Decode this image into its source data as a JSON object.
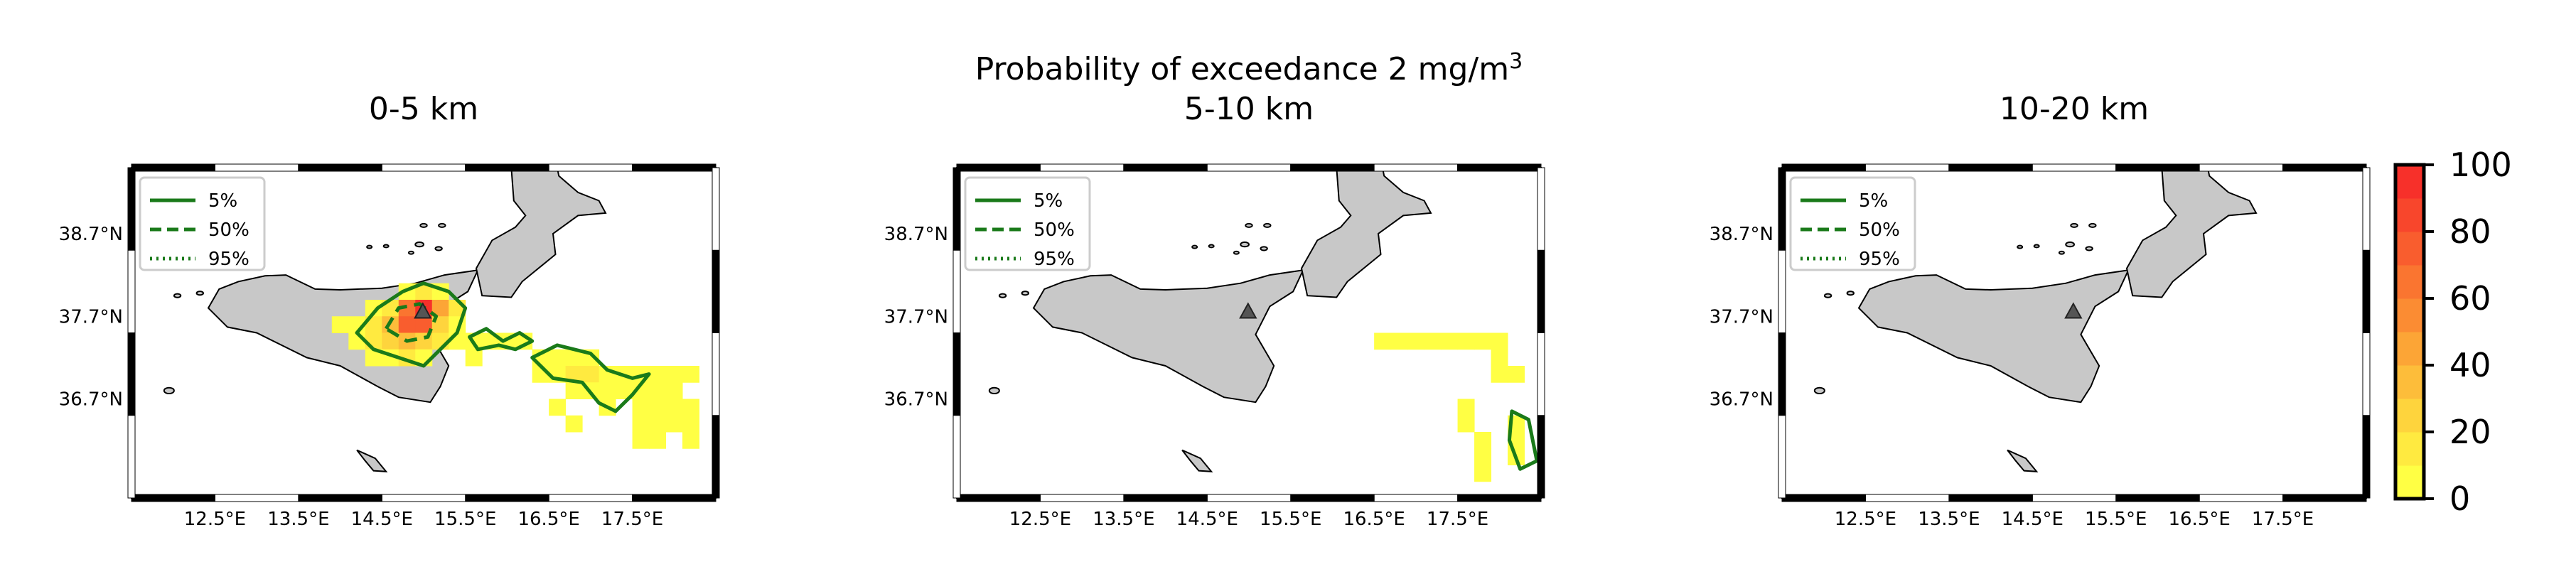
{
  "figure": {
    "suptitle_main": "Probability of exceedance 2 mg/m",
    "suptitle_sup": "3"
  },
  "legend": {
    "items": [
      {
        "label": "5%",
        "dash": "solid"
      },
      {
        "label": "50%",
        "dash": "dashed"
      },
      {
        "label": "95%",
        "dash": "dotted"
      }
    ]
  },
  "axes": {
    "lon_ticks": [
      "12.5°E",
      "13.5°E",
      "14.5°E",
      "15.5°E",
      "16.5°E",
      "17.5°E"
    ],
    "lon_values": [
      12.5,
      13.5,
      14.5,
      15.5,
      16.5,
      17.5
    ],
    "lat_ticks": [
      "38.7°N",
      "37.7°N",
      "36.7°N"
    ],
    "lat_values": [
      38.7,
      37.7,
      36.7
    ],
    "extent": {
      "lon_min": 11.5,
      "lon_max": 18.5,
      "lat_min": 35.5,
      "lat_max": 39.5
    }
  },
  "colorbar": {
    "ticks": [
      "0",
      "20",
      "40",
      "60",
      "80",
      "100"
    ],
    "tick_values": [
      0,
      20,
      40,
      60,
      80,
      100
    ],
    "colors": [
      "#ffff44",
      "#ffea40",
      "#fed43d",
      "#fdbd3a",
      "#fca536",
      "#fb8c33",
      "#fa7530",
      "#f95d2e",
      "#f8462c",
      "#f7302a"
    ]
  },
  "colors": {
    "land": "#c8c8c8",
    "contour": "#1a7a1a",
    "volcano": "#555555"
  },
  "panels": [
    {
      "title": "0-5 km",
      "cells": [
        {
          "lon": 14.8,
          "lat": 38.0,
          "p": 8
        },
        {
          "lon": 15.0,
          "lat": 38.0,
          "p": 15
        },
        {
          "lon": 15.2,
          "lat": 38.0,
          "p": 8
        },
        {
          "lon": 14.4,
          "lat": 37.8,
          "p": 6
        },
        {
          "lon": 14.6,
          "lat": 37.8,
          "p": 12
        },
        {
          "lon": 14.8,
          "lat": 37.8,
          "p": 60
        },
        {
          "lon": 15.0,
          "lat": 37.8,
          "p": 95
        },
        {
          "lon": 15.2,
          "lat": 37.8,
          "p": 45
        },
        {
          "lon": 15.4,
          "lat": 37.8,
          "p": 10
        },
        {
          "lon": 14.0,
          "lat": 37.6,
          "p": 5
        },
        {
          "lon": 14.2,
          "lat": 37.6,
          "p": 6
        },
        {
          "lon": 14.4,
          "lat": 37.6,
          "p": 10
        },
        {
          "lon": 14.6,
          "lat": 37.6,
          "p": 30
        },
        {
          "lon": 14.8,
          "lat": 37.6,
          "p": 75
        },
        {
          "lon": 15.0,
          "lat": 37.6,
          "p": 70
        },
        {
          "lon": 15.2,
          "lat": 37.6,
          "p": 25
        },
        {
          "lon": 15.4,
          "lat": 37.6,
          "p": 8
        },
        {
          "lon": 14.2,
          "lat": 37.4,
          "p": 5
        },
        {
          "lon": 14.4,
          "lat": 37.4,
          "p": 10
        },
        {
          "lon": 14.6,
          "lat": 37.4,
          "p": 20
        },
        {
          "lon": 14.8,
          "lat": 37.4,
          "p": 30
        },
        {
          "lon": 15.0,
          "lat": 37.4,
          "p": 22
        },
        {
          "lon": 15.2,
          "lat": 37.4,
          "p": 10
        },
        {
          "lon": 15.4,
          "lat": 37.4,
          "p": 5
        },
        {
          "lon": 14.4,
          "lat": 37.2,
          "p": 6
        },
        {
          "lon": 14.6,
          "lat": 37.2,
          "p": 8
        },
        {
          "lon": 14.8,
          "lat": 37.2,
          "p": 10
        },
        {
          "lon": 15.0,
          "lat": 37.2,
          "p": 6
        },
        {
          "lon": 15.6,
          "lat": 37.4,
          "p": 5
        },
        {
          "lon": 15.8,
          "lat": 37.4,
          "p": 8
        },
        {
          "lon": 16.0,
          "lat": 37.4,
          "p": 8
        },
        {
          "lon": 16.2,
          "lat": 37.4,
          "p": 6
        },
        {
          "lon": 15.6,
          "lat": 37.2,
          "p": 5
        },
        {
          "lon": 16.4,
          "lat": 37.2,
          "p": 6
        },
        {
          "lon": 16.6,
          "lat": 37.2,
          "p": 8
        },
        {
          "lon": 16.8,
          "lat": 37.2,
          "p": 8
        },
        {
          "lon": 17.0,
          "lat": 37.2,
          "p": 6
        },
        {
          "lon": 16.4,
          "lat": 37.0,
          "p": 6
        },
        {
          "lon": 16.6,
          "lat": 37.0,
          "p": 8
        },
        {
          "lon": 16.8,
          "lat": 37.0,
          "p": 10
        },
        {
          "lon": 17.0,
          "lat": 37.0,
          "p": 10
        },
        {
          "lon": 17.2,
          "lat": 37.0,
          "p": 8
        },
        {
          "lon": 17.4,
          "lat": 37.0,
          "p": 6
        },
        {
          "lon": 17.6,
          "lat": 37.0,
          "p": 5
        },
        {
          "lon": 17.8,
          "lat": 37.0,
          "p": 5
        },
        {
          "lon": 18.0,
          "lat": 37.0,
          "p": 5
        },
        {
          "lon": 18.2,
          "lat": 37.0,
          "p": 5
        },
        {
          "lon": 16.8,
          "lat": 36.8,
          "p": 6
        },
        {
          "lon": 17.0,
          "lat": 36.8,
          "p": 8
        },
        {
          "lon": 17.2,
          "lat": 36.8,
          "p": 6
        },
        {
          "lon": 17.4,
          "lat": 36.8,
          "p": 5
        },
        {
          "lon": 17.6,
          "lat": 36.8,
          "p": 5
        },
        {
          "lon": 17.8,
          "lat": 36.8,
          "p": 5
        },
        {
          "lon": 18.0,
          "lat": 36.8,
          "p": 5
        },
        {
          "lon": 16.6,
          "lat": 36.6,
          "p": 5
        },
        {
          "lon": 17.2,
          "lat": 36.6,
          "p": 5
        },
        {
          "lon": 17.6,
          "lat": 36.6,
          "p": 5
        },
        {
          "lon": 17.8,
          "lat": 36.6,
          "p": 5
        },
        {
          "lon": 18.0,
          "lat": 36.6,
          "p": 5
        },
        {
          "lon": 18.2,
          "lat": 36.6,
          "p": 5
        },
        {
          "lon": 16.8,
          "lat": 36.4,
          "p": 5
        },
        {
          "lon": 17.6,
          "lat": 36.4,
          "p": 5
        },
        {
          "lon": 17.8,
          "lat": 36.4,
          "p": 5
        },
        {
          "lon": 18.0,
          "lat": 36.4,
          "p": 5
        },
        {
          "lon": 18.2,
          "lat": 36.4,
          "p": 5
        },
        {
          "lon": 17.6,
          "lat": 36.2,
          "p": 5
        },
        {
          "lon": 17.8,
          "lat": 36.2,
          "p": 5
        },
        {
          "lon": 18.2,
          "lat": 36.2,
          "p": 5
        }
      ],
      "contours": [
        {
          "level": "5%",
          "points": [
            [
              14.2,
              37.5
            ],
            [
              14.45,
              37.8
            ],
            [
              14.75,
              38.0
            ],
            [
              15.0,
              38.1
            ],
            [
              15.3,
              38.0
            ],
            [
              15.5,
              37.8
            ],
            [
              15.4,
              37.5
            ],
            [
              15.2,
              37.3
            ],
            [
              15.0,
              37.1
            ],
            [
              14.7,
              37.2
            ],
            [
              14.4,
              37.3
            ]
          ]
        },
        {
          "level": "5%",
          "points": [
            [
              15.55,
              37.45
            ],
            [
              15.75,
              37.55
            ],
            [
              15.95,
              37.4
            ],
            [
              16.15,
              37.5
            ],
            [
              16.3,
              37.4
            ],
            [
              16.1,
              37.3
            ],
            [
              15.9,
              37.35
            ],
            [
              15.65,
              37.3
            ]
          ]
        },
        {
          "level": "5%",
          "points": [
            [
              16.3,
              37.2
            ],
            [
              16.6,
              37.35
            ],
            [
              17.0,
              37.25
            ],
            [
              17.2,
              37.05
            ],
            [
              17.5,
              36.95
            ],
            [
              17.7,
              37.0
            ],
            [
              17.5,
              36.75
            ],
            [
              17.3,
              36.55
            ],
            [
              17.1,
              36.65
            ],
            [
              16.9,
              36.9
            ],
            [
              16.55,
              36.95
            ]
          ]
        },
        {
          "level": "50%",
          "points": [
            [
              14.55,
              37.55
            ],
            [
              14.7,
              37.8
            ],
            [
              14.95,
              37.85
            ],
            [
              15.15,
              37.7
            ],
            [
              15.05,
              37.45
            ],
            [
              14.8,
              37.4
            ]
          ]
        }
      ],
      "volcano": true
    },
    {
      "title": "5-10 km",
      "cells": [
        {
          "lon": 16.6,
          "lat": 37.4,
          "p": 5
        },
        {
          "lon": 16.8,
          "lat": 37.4,
          "p": 5
        },
        {
          "lon": 17.0,
          "lat": 37.4,
          "p": 5
        },
        {
          "lon": 17.2,
          "lat": 37.4,
          "p": 5
        },
        {
          "lon": 17.4,
          "lat": 37.4,
          "p": 5
        },
        {
          "lon": 17.6,
          "lat": 37.4,
          "p": 5
        },
        {
          "lon": 17.8,
          "lat": 37.4,
          "p": 5
        },
        {
          "lon": 18.0,
          "lat": 37.4,
          "p": 5
        },
        {
          "lon": 18.0,
          "lat": 37.2,
          "p": 5
        },
        {
          "lon": 18.0,
          "lat": 37.0,
          "p": 5
        },
        {
          "lon": 18.2,
          "lat": 37.0,
          "p": 5
        },
        {
          "lon": 17.6,
          "lat": 36.6,
          "p": 5
        },
        {
          "lon": 17.6,
          "lat": 36.4,
          "p": 5
        },
        {
          "lon": 18.2,
          "lat": 36.4,
          "p": 5
        },
        {
          "lon": 17.8,
          "lat": 36.2,
          "p": 5
        },
        {
          "lon": 18.2,
          "lat": 36.2,
          "p": 5
        },
        {
          "lon": 17.8,
          "lat": 36.0,
          "p": 5
        },
        {
          "lon": 18.2,
          "lat": 36.0,
          "p": 5
        },
        {
          "lon": 17.8,
          "lat": 35.8,
          "p": 5
        }
      ],
      "contours": [
        {
          "level": "5%",
          "points": [
            [
              18.15,
              36.55
            ],
            [
              18.35,
              36.45
            ],
            [
              18.45,
              35.95
            ],
            [
              18.25,
              35.85
            ],
            [
              18.12,
              36.2
            ]
          ]
        }
      ],
      "volcano": true
    },
    {
      "title": "10-20 km",
      "cells": [],
      "contours": [],
      "volcano": true
    }
  ]
}
